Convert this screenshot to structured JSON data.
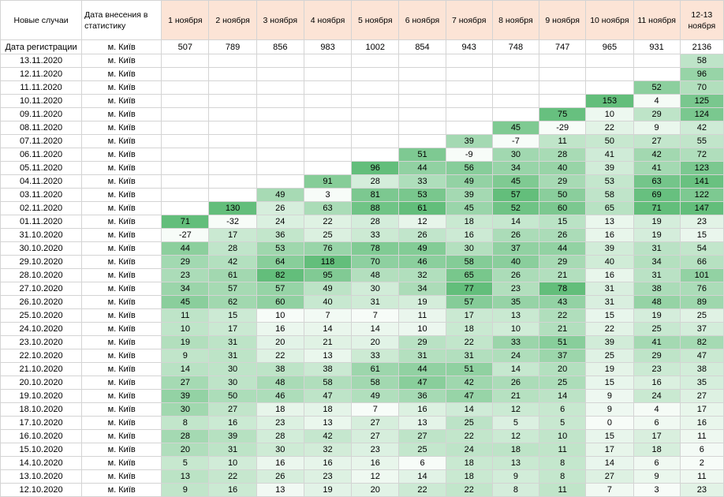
{
  "header": {
    "corner": "Новые случаи",
    "entry_date": "Дата внесения в статистику",
    "columns": [
      "1 ноября",
      "2 ноября",
      "3 ноября",
      "4 ноября",
      "5 ноября",
      "6 ноября",
      "7 ноября",
      "8 ноября",
      "9 ноября",
      "10 ноября",
      "11 ноября",
      "12-13 ноября"
    ]
  },
  "registration_row": {
    "label": "Дата регистрации",
    "city": "м. Київ",
    "values": [
      "507",
      "789",
      "856",
      "983",
      "1002",
      "854",
      "943",
      "748",
      "747",
      "965",
      "931",
      "2136"
    ]
  },
  "rows": [
    {
      "date": "13.11.2020",
      "city": "м. Київ",
      "values": [
        "",
        "",
        "",
        "",
        "",
        "",
        "",
        "",
        "",
        "",
        "",
        "58"
      ]
    },
    {
      "date": "12.11.2020",
      "city": "м. Київ",
      "values": [
        "",
        "",
        "",
        "",
        "",
        "",
        "",
        "",
        "",
        "",
        "",
        "96"
      ]
    },
    {
      "date": "11.11.2020",
      "city": "м. Київ",
      "values": [
        "",
        "",
        "",
        "",
        "",
        "",
        "",
        "",
        "",
        "",
        "52",
        "70"
      ]
    },
    {
      "date": "10.11.2020",
      "city": "м. Київ",
      "values": [
        "",
        "",
        "",
        "",
        "",
        "",
        "",
        "",
        "",
        "153",
        "4",
        "125"
      ]
    },
    {
      "date": "09.11.2020",
      "city": "м. Київ",
      "values": [
        "",
        "",
        "",
        "",
        "",
        "",
        "",
        "",
        "75",
        "10",
        "29",
        "124"
      ]
    },
    {
      "date": "08.11.2020",
      "city": "м. Київ",
      "values": [
        "",
        "",
        "",
        "",
        "",
        "",
        "",
        "45",
        "-29",
        "22",
        "9",
        "42"
      ]
    },
    {
      "date": "07.11.2020",
      "city": "м. Київ",
      "values": [
        "",
        "",
        "",
        "",
        "",
        "",
        "39",
        "-7",
        "11",
        "50",
        "27",
        "55"
      ]
    },
    {
      "date": "06.11.2020",
      "city": "м. Київ",
      "values": [
        "",
        "",
        "",
        "",
        "",
        "51",
        "-9",
        "30",
        "28",
        "41",
        "42",
        "72"
      ]
    },
    {
      "date": "05.11.2020",
      "city": "м. Київ",
      "values": [
        "",
        "",
        "",
        "",
        "96",
        "44",
        "56",
        "34",
        "40",
        "39",
        "41",
        "123"
      ]
    },
    {
      "date": "04.11.2020",
      "city": "м. Київ",
      "values": [
        "",
        "",
        "",
        "91",
        "28",
        "33",
        "49",
        "45",
        "29",
        "53",
        "63",
        "141"
      ]
    },
    {
      "date": "03.11.2020",
      "city": "м. Київ",
      "values": [
        "",
        "",
        "49",
        "3",
        "81",
        "53",
        "39",
        "57",
        "50",
        "58",
        "69",
        "122"
      ]
    },
    {
      "date": "02.11.2020",
      "city": "м. Київ",
      "values": [
        "",
        "130",
        "26",
        "63",
        "88",
        "61",
        "45",
        "52",
        "60",
        "65",
        "71",
        "147"
      ]
    },
    {
      "date": "01.11.2020",
      "city": "м. Київ",
      "values": [
        "71",
        "-32",
        "24",
        "22",
        "28",
        "12",
        "18",
        "14",
        "15",
        "13",
        "19",
        "23"
      ]
    },
    {
      "date": "31.10.2020",
      "city": "м. Київ",
      "values": [
        "-27",
        "17",
        "36",
        "25",
        "33",
        "26",
        "16",
        "26",
        "26",
        "16",
        "19",
        "15"
      ]
    },
    {
      "date": "30.10.2020",
      "city": "м. Київ",
      "values": [
        "44",
        "28",
        "53",
        "76",
        "78",
        "49",
        "30",
        "37",
        "44",
        "39",
        "31",
        "54"
      ]
    },
    {
      "date": "29.10.2020",
      "city": "м. Київ",
      "values": [
        "29",
        "42",
        "64",
        "118",
        "70",
        "46",
        "58",
        "40",
        "29",
        "40",
        "34",
        "66"
      ]
    },
    {
      "date": "28.10.2020",
      "city": "м. Київ",
      "values": [
        "23",
        "61",
        "82",
        "95",
        "48",
        "32",
        "65",
        "26",
        "21",
        "16",
        "31",
        "101"
      ]
    },
    {
      "date": "27.10.2020",
      "city": "м. Київ",
      "values": [
        "34",
        "57",
        "57",
        "49",
        "30",
        "34",
        "77",
        "23",
        "78",
        "31",
        "38",
        "76"
      ]
    },
    {
      "date": "26.10.2020",
      "city": "м. Київ",
      "values": [
        "45",
        "62",
        "60",
        "40",
        "31",
        "19",
        "57",
        "35",
        "43",
        "31",
        "48",
        "89"
      ]
    },
    {
      "date": "25.10.2020",
      "city": "м. Київ",
      "values": [
        "11",
        "15",
        "10",
        "7",
        "7",
        "11",
        "17",
        "13",
        "22",
        "15",
        "19",
        "25"
      ]
    },
    {
      "date": "24.10.2020",
      "city": "м. Київ",
      "values": [
        "10",
        "17",
        "16",
        "14",
        "14",
        "10",
        "18",
        "10",
        "21",
        "22",
        "25",
        "37"
      ]
    },
    {
      "date": "23.10.2020",
      "city": "м. Київ",
      "values": [
        "19",
        "31",
        "20",
        "21",
        "20",
        "29",
        "22",
        "33",
        "51",
        "39",
        "41",
        "82"
      ]
    },
    {
      "date": "22.10.2020",
      "city": "м. Київ",
      "values": [
        "9",
        "31",
        "22",
        "13",
        "33",
        "31",
        "31",
        "24",
        "37",
        "25",
        "29",
        "47"
      ]
    },
    {
      "date": "21.10.2020",
      "city": "м. Київ",
      "values": [
        "14",
        "30",
        "38",
        "38",
        "61",
        "44",
        "51",
        "14",
        "20",
        "19",
        "23",
        "38"
      ]
    },
    {
      "date": "20.10.2020",
      "city": "м. Київ",
      "values": [
        "27",
        "30",
        "48",
        "58",
        "58",
        "47",
        "42",
        "26",
        "25",
        "15",
        "16",
        "35"
      ]
    },
    {
      "date": "19.10.2020",
      "city": "м. Київ",
      "values": [
        "39",
        "50",
        "46",
        "47",
        "49",
        "36",
        "47",
        "21",
        "14",
        "9",
        "24",
        "27"
      ]
    },
    {
      "date": "18.10.2020",
      "city": "м. Київ",
      "values": [
        "30",
        "27",
        "18",
        "18",
        "7",
        "16",
        "14",
        "12",
        "6",
        "9",
        "4",
        "17"
      ]
    },
    {
      "date": "17.10.2020",
      "city": "м. Київ",
      "values": [
        "8",
        "16",
        "23",
        "13",
        "27",
        "13",
        "25",
        "5",
        "5",
        "0",
        "6",
        "16"
      ]
    },
    {
      "date": "16.10.2020",
      "city": "м. Київ",
      "values": [
        "28",
        "39",
        "28",
        "42",
        "27",
        "27",
        "22",
        "12",
        "10",
        "15",
        "17",
        "11"
      ]
    },
    {
      "date": "15.10.2020",
      "city": "м. Київ",
      "values": [
        "20",
        "31",
        "30",
        "32",
        "23",
        "25",
        "24",
        "18",
        "11",
        "17",
        "18",
        "6"
      ]
    },
    {
      "date": "14.10.2020",
      "city": "м. Київ",
      "values": [
        "5",
        "10",
        "16",
        "16",
        "16",
        "6",
        "18",
        "13",
        "8",
        "14",
        "6",
        "2"
      ]
    },
    {
      "date": "13.10.2020",
      "city": "м. Київ",
      "values": [
        "13",
        "22",
        "26",
        "23",
        "12",
        "14",
        "18",
        "9",
        "8",
        "27",
        "9",
        "11"
      ]
    },
    {
      "date": "12.10.2020",
      "city": "м. Київ",
      "values": [
        "9",
        "16",
        "13",
        "19",
        "20",
        "22",
        "22",
        "8",
        "11",
        "7",
        "3",
        "23"
      ]
    }
  ],
  "colors": {
    "header_bg": "#fce4d6",
    "grid": "#d4d4d4",
    "scale_low": "#f7fcf8",
    "scale_high": "#63be7b"
  }
}
